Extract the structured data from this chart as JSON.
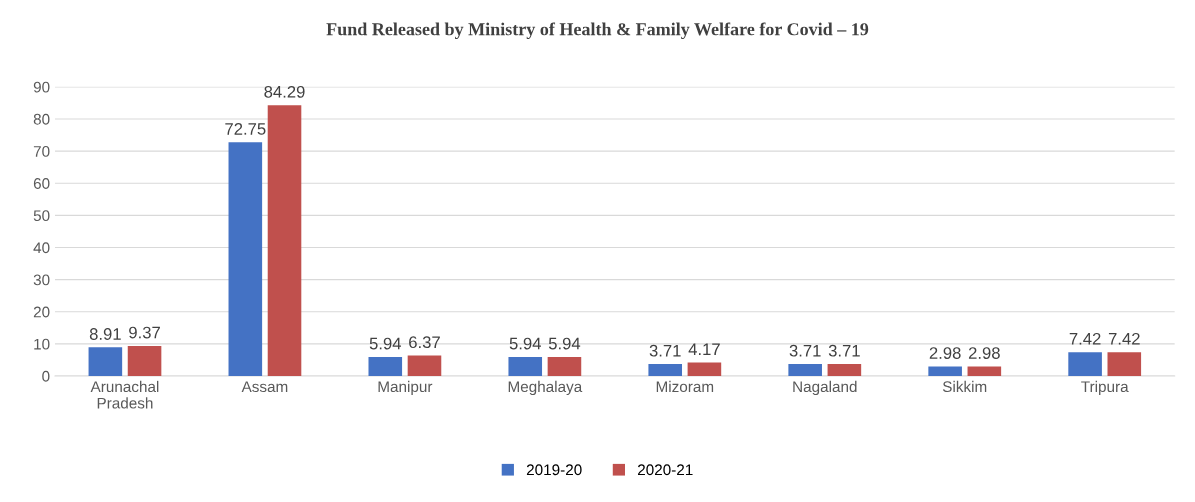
{
  "chart_data": {
    "type": "bar",
    "title": "Fund Released by Ministry of Health & Family Welfare for Covid – 19",
    "categories": [
      "Arunachal\nPradesh",
      "Assam",
      "Manipur",
      "Meghalaya",
      "Mizoram",
      "Nagaland",
      "Sikkim",
      "Tripura"
    ],
    "series": [
      {
        "name": "2019-20",
        "color": "#4472c4",
        "values": [
          8.91,
          72.75,
          5.94,
          5.94,
          3.71,
          3.71,
          2.98,
          7.42
        ]
      },
      {
        "name": "2020-21",
        "color": "#c0504d",
        "values": [
          9.37,
          84.29,
          6.37,
          5.94,
          4.17,
          3.71,
          2.98,
          7.42
        ]
      }
    ],
    "ylim": [
      0,
      90
    ],
    "yticks": [
      0,
      10,
      20,
      30,
      40,
      50,
      60,
      70,
      80,
      90
    ],
    "grid": "y",
    "legend": "bottom",
    "data_labels": true
  }
}
